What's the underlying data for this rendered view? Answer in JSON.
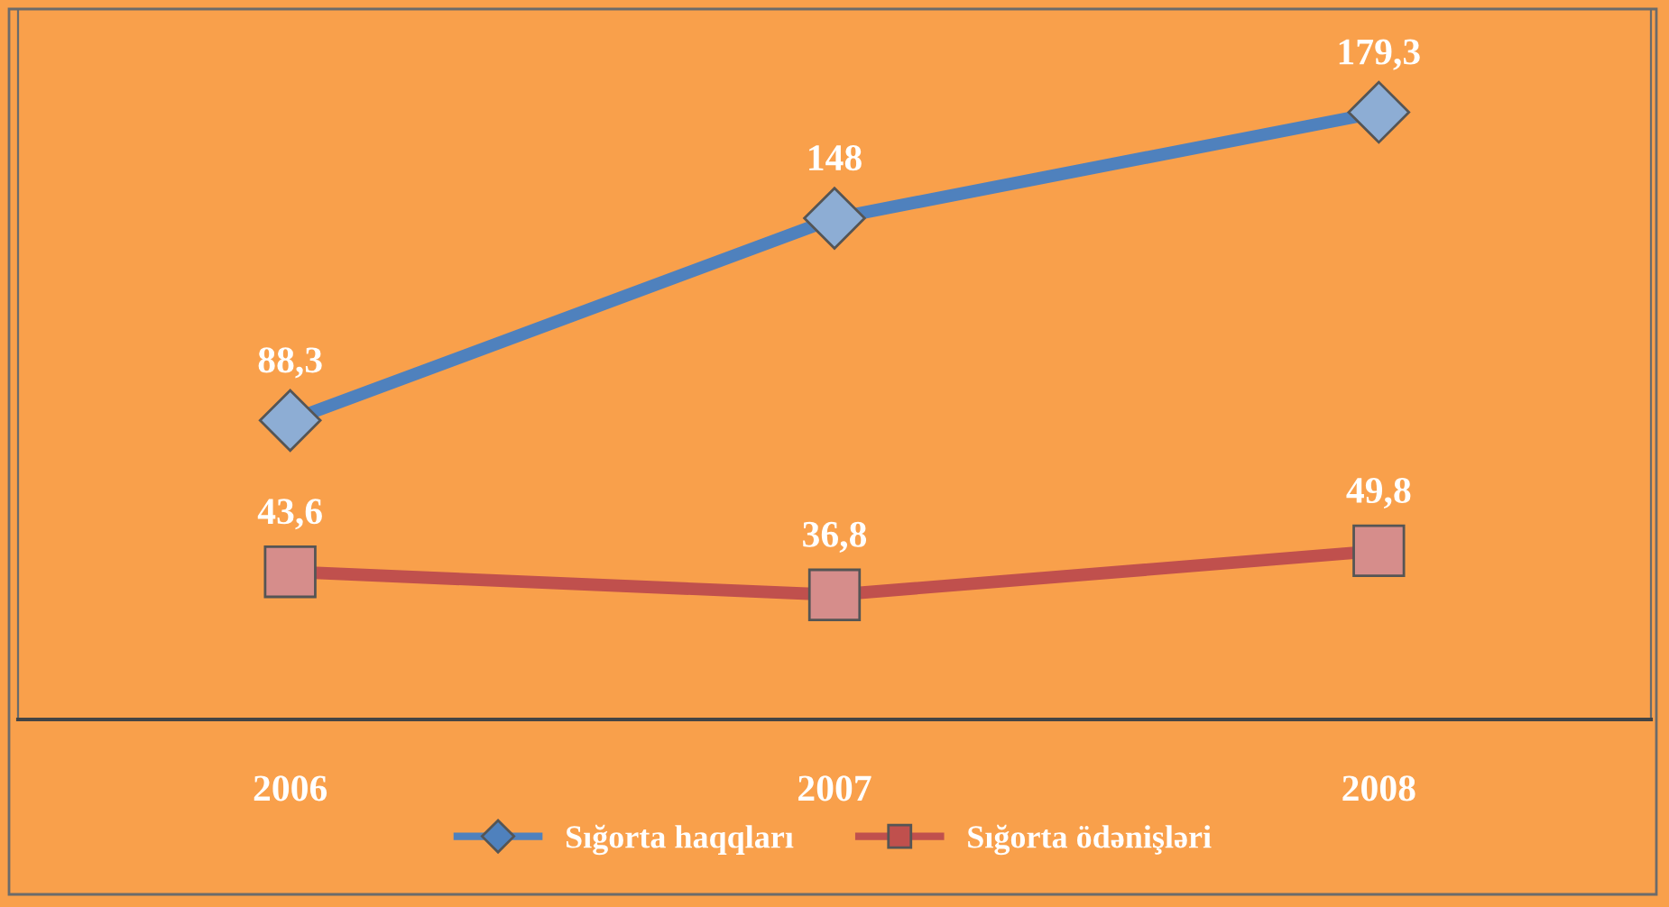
{
  "chart_data": {
    "type": "line",
    "categories": [
      "2006",
      "2007",
      "2008"
    ],
    "series": [
      {
        "name": "Sığorta haqqları",
        "color": "#4f81bd",
        "marker": "diamond",
        "values": [
          88.3,
          148,
          179.3
        ],
        "value_labels": [
          "88,3",
          "148",
          "179,3"
        ]
      },
      {
        "name": "Sığorta ödənişləri",
        "color": "#c0504d",
        "marker": "square",
        "values": [
          43.6,
          36.8,
          49.8
        ],
        "value_labels": [
          "43,6",
          "36,8",
          "49,8"
        ]
      }
    ],
    "legend": "bottom",
    "grid": false
  }
}
